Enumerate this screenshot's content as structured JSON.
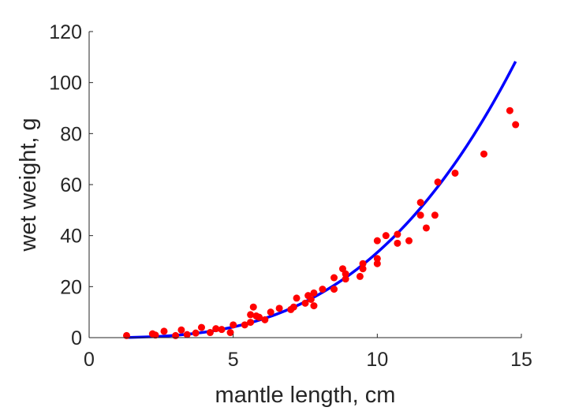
{
  "chart_data": {
    "type": "scatter",
    "title": "",
    "xlabel": "mantle length, cm",
    "ylabel": "wet weight, g",
    "xlim": [
      0,
      15
    ],
    "ylim": [
      0,
      120
    ],
    "xticks": [
      0,
      5,
      10,
      15
    ],
    "yticks": [
      0,
      20,
      40,
      60,
      80,
      100,
      120
    ],
    "xtick_labels": [
      "0",
      "5",
      "10",
      "15"
    ],
    "ytick_labels": [
      "0",
      "20",
      "40",
      "60",
      "80",
      100,
      120
    ],
    "grid": false,
    "legend": "none",
    "series": [
      {
        "type": "scatter",
        "color": "#ff0000",
        "points": [
          [
            1.3,
            0.8
          ],
          [
            2.2,
            1.5
          ],
          [
            2.3,
            1.0
          ],
          [
            2.6,
            2.5
          ],
          [
            3.0,
            0.8
          ],
          [
            3.2,
            3.0
          ],
          [
            3.4,
            1.2
          ],
          [
            3.7,
            1.8
          ],
          [
            3.9,
            4.0
          ],
          [
            4.2,
            2.0
          ],
          [
            4.4,
            3.5
          ],
          [
            4.6,
            3.2
          ],
          [
            4.9,
            2.0
          ],
          [
            5.0,
            5.0
          ],
          [
            5.4,
            5.0
          ],
          [
            5.6,
            6.0
          ],
          [
            5.6,
            9.0
          ],
          [
            5.7,
            12.0
          ],
          [
            5.8,
            8.5
          ],
          [
            5.9,
            8.0
          ],
          [
            6.1,
            7.0
          ],
          [
            6.3,
            10.0
          ],
          [
            6.6,
            11.5
          ],
          [
            7.0,
            11.0
          ],
          [
            7.1,
            12.0
          ],
          [
            7.2,
            15.5
          ],
          [
            7.5,
            13.5
          ],
          [
            7.6,
            16.5
          ],
          [
            7.7,
            15.0
          ],
          [
            7.8,
            12.5
          ],
          [
            7.8,
            17.5
          ],
          [
            8.1,
            19.0
          ],
          [
            8.5,
            23.5
          ],
          [
            8.5,
            19.0
          ],
          [
            8.8,
            27.0
          ],
          [
            8.9,
            23.0
          ],
          [
            8.9,
            25.0
          ],
          [
            9.4,
            24.0
          ],
          [
            9.5,
            29.0
          ],
          [
            9.5,
            27.0
          ],
          [
            10.0,
            38.0
          ],
          [
            10.0,
            29.0
          ],
          [
            10.0,
            31.0
          ],
          [
            10.3,
            40.0
          ],
          [
            10.7,
            37.0
          ],
          [
            10.7,
            40.5
          ],
          [
            11.1,
            38.0
          ],
          [
            11.5,
            48.0
          ],
          [
            11.5,
            53.0
          ],
          [
            11.7,
            43.0
          ],
          [
            12.0,
            48.0
          ],
          [
            12.1,
            61.0
          ],
          [
            12.7,
            64.5
          ],
          [
            13.7,
            72.0
          ],
          [
            14.6,
            89.0
          ],
          [
            14.8,
            83.5
          ]
        ]
      },
      {
        "type": "line",
        "color": "#0000ff",
        "fit": "power",
        "fit_a": 0.0334,
        "fit_b": 3.0,
        "x_range": [
          1.3,
          14.8
        ]
      }
    ]
  }
}
